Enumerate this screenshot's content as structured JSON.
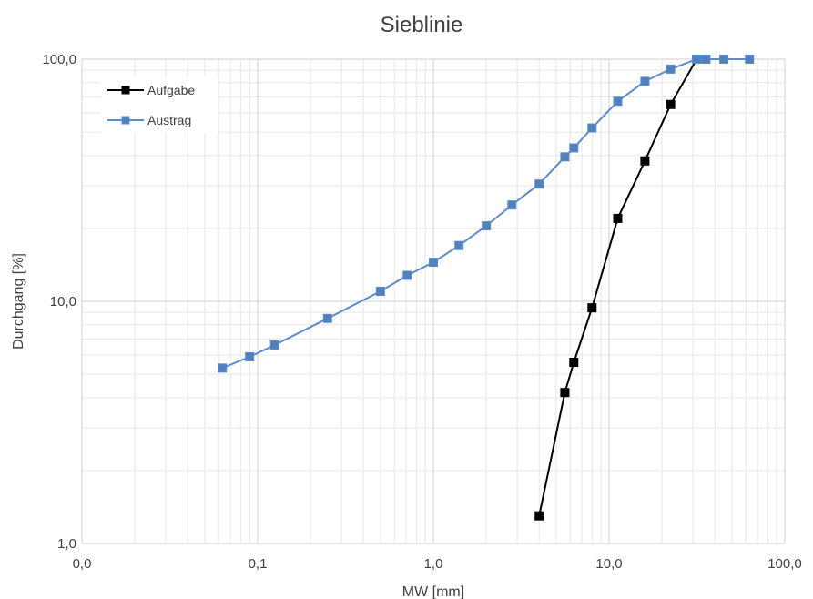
{
  "chart_data": {
    "type": "line",
    "title": "Sieblinie",
    "xlabel": "MW [mm]",
    "ylabel": "Durchgang [%]",
    "xscale": "log",
    "yscale": "log",
    "xlim": [
      0.01,
      100
    ],
    "ylim": [
      1,
      100
    ],
    "x_ticks": [
      0.01,
      0.1,
      1,
      10,
      100
    ],
    "x_tick_labels": [
      "0,0",
      "0,1",
      "1,0",
      "10,0",
      "100,0"
    ],
    "y_ticks": [
      1,
      10,
      100
    ],
    "y_tick_labels": [
      "1,0",
      "10,0",
      "100,0"
    ],
    "grid": true,
    "legend_position": "top-left",
    "series": [
      {
        "name": "Aufgabe",
        "color": "#000000",
        "marker_fill": "#000000",
        "points": [
          [
            4.0,
            1.3
          ],
          [
            5.6,
            4.2
          ],
          [
            6.3,
            5.6
          ],
          [
            8.0,
            9.4
          ],
          [
            11.2,
            22.0
          ],
          [
            16.0,
            38.0
          ],
          [
            22.4,
            65.0
          ],
          [
            31.5,
            100.0
          ],
          [
            35.5,
            100.0
          ]
        ]
      },
      {
        "name": "Austrag",
        "color": "#5b8bd0",
        "marker_fill": "#4f81bd",
        "points": [
          [
            0.063,
            5.3
          ],
          [
            0.09,
            5.9
          ],
          [
            0.125,
            6.6
          ],
          [
            0.25,
            8.5
          ],
          [
            0.5,
            11.0
          ],
          [
            0.71,
            12.8
          ],
          [
            1.0,
            14.5
          ],
          [
            1.4,
            17.0
          ],
          [
            2.0,
            20.5
          ],
          [
            2.8,
            25.0
          ],
          [
            4.0,
            30.5
          ],
          [
            5.6,
            39.5
          ],
          [
            6.3,
            43.0
          ],
          [
            8.0,
            52.0
          ],
          [
            11.2,
            67.0
          ],
          [
            16.0,
            81.0
          ],
          [
            22.4,
            91.0
          ],
          [
            31.5,
            100.0
          ],
          [
            35.5,
            100.0
          ],
          [
            45.0,
            100.0
          ],
          [
            63.0,
            100.0
          ]
        ]
      }
    ]
  }
}
